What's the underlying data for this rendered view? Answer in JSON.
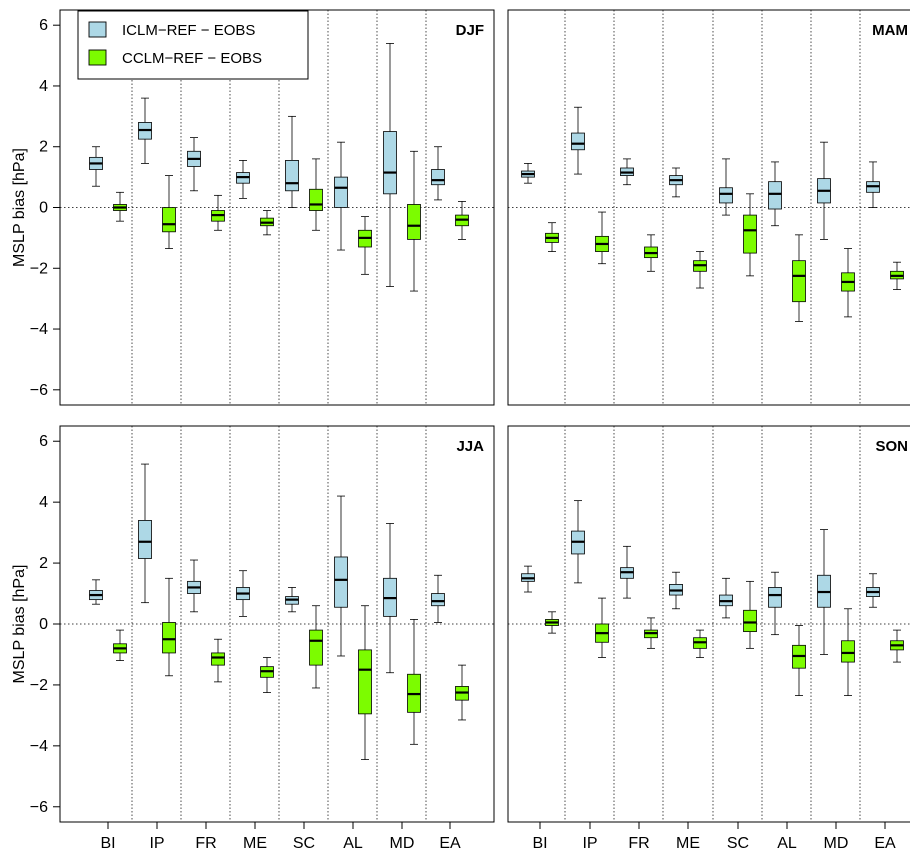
{
  "chart_data": {
    "type": "boxplot",
    "ylabel": "MSLP bias [hPa]",
    "ylim": [
      -6.5,
      6.5
    ],
    "yticks": [
      -6,
      -4,
      -2,
      0,
      2,
      4,
      6
    ],
    "categories": [
      "BI",
      "IP",
      "FR",
      "ME",
      "SC",
      "AL",
      "MD",
      "EA"
    ],
    "legend": {
      "position": "top-left",
      "items": [
        {
          "label": "ICLM−REF − EOBS",
          "color": "#add8e6"
        },
        {
          "label": "CCLM−REF − EOBS",
          "color": "#7cfc00"
        }
      ]
    },
    "reference_line": 0,
    "panels": [
      {
        "title": "DJF",
        "series": [
          {
            "name": "ICLM−REF − EOBS",
            "color": "#add8e6",
            "boxes": [
              {
                "min": 0.7,
                "q1": 1.25,
                "median": 1.45,
                "q3": 1.65,
                "max": 2.0
              },
              {
                "min": 1.45,
                "q1": 2.25,
                "median": 2.55,
                "q3": 2.8,
                "max": 3.6
              },
              {
                "min": 0.55,
                "q1": 1.35,
                "median": 1.6,
                "q3": 1.85,
                "max": 2.3
              },
              {
                "min": 0.3,
                "q1": 0.8,
                "median": 1.0,
                "q3": 1.15,
                "max": 1.55
              },
              {
                "min": 0.0,
                "q1": 0.55,
                "median": 0.8,
                "q3": 1.55,
                "max": 3.0
              },
              {
                "min": -1.4,
                "q1": 0.0,
                "median": 0.65,
                "q3": 1.0,
                "max": 2.15
              },
              {
                "min": -2.6,
                "q1": 0.45,
                "median": 1.15,
                "q3": 2.5,
                "max": 5.4
              },
              {
                "min": 0.25,
                "q1": 0.75,
                "median": 0.9,
                "q3": 1.25,
                "max": 2.0
              }
            ]
          },
          {
            "name": "CCLM−REF − EOBS",
            "color": "#7cfc00",
            "boxes": [
              {
                "min": -0.45,
                "q1": -0.1,
                "median": 0.0,
                "q3": 0.1,
                "max": 0.5
              },
              {
                "min": -1.35,
                "q1": -0.8,
                "median": -0.55,
                "q3": 0.0,
                "max": 1.05
              },
              {
                "min": -0.75,
                "q1": -0.45,
                "median": -0.25,
                "q3": -0.1,
                "max": 0.4
              },
              {
                "min": -0.9,
                "q1": -0.6,
                "median": -0.5,
                "q3": -0.35,
                "max": -0.1
              },
              {
                "min": -0.75,
                "q1": -0.1,
                "median": 0.1,
                "q3": 0.6,
                "max": 1.6
              },
              {
                "min": -2.2,
                "q1": -1.3,
                "median": -1.0,
                "q3": -0.75,
                "max": -0.3
              },
              {
                "min": -2.75,
                "q1": -1.05,
                "median": -0.6,
                "q3": 0.1,
                "max": 1.85
              },
              {
                "min": -1.05,
                "q1": -0.6,
                "median": -0.4,
                "q3": -0.25,
                "max": 0.2
              }
            ]
          }
        ]
      },
      {
        "title": "MAM",
        "series": [
          {
            "name": "ICLM−REF − EOBS",
            "color": "#add8e6",
            "boxes": [
              {
                "min": 0.8,
                "q1": 1.0,
                "median": 1.1,
                "q3": 1.2,
                "max": 1.45
              },
              {
                "min": 1.1,
                "q1": 1.9,
                "median": 2.1,
                "q3": 2.45,
                "max": 3.3
              },
              {
                "min": 0.75,
                "q1": 1.05,
                "median": 1.15,
                "q3": 1.3,
                "max": 1.6
              },
              {
                "min": 0.35,
                "q1": 0.75,
                "median": 0.9,
                "q3": 1.05,
                "max": 1.3
              },
              {
                "min": -0.25,
                "q1": 0.15,
                "median": 0.45,
                "q3": 0.65,
                "max": 1.6
              },
              {
                "min": -0.6,
                "q1": -0.05,
                "median": 0.45,
                "q3": 0.85,
                "max": 1.5
              },
              {
                "min": -1.05,
                "q1": 0.15,
                "median": 0.55,
                "q3": 0.95,
                "max": 2.15
              },
              {
                "min": 0.0,
                "q1": 0.5,
                "median": 0.7,
                "q3": 0.85,
                "max": 1.5
              }
            ]
          },
          {
            "name": "CCLM−REF − EOBS",
            "color": "#7cfc00",
            "boxes": [
              {
                "min": -1.45,
                "q1": -1.15,
                "median": -1.0,
                "q3": -0.85,
                "max": -0.5
              },
              {
                "min": -1.85,
                "q1": -1.45,
                "median": -1.2,
                "q3": -0.95,
                "max": -0.15
              },
              {
                "min": -2.1,
                "q1": -1.65,
                "median": -1.5,
                "q3": -1.3,
                "max": -0.9
              },
              {
                "min": -2.65,
                "q1": -2.1,
                "median": -1.9,
                "q3": -1.75,
                "max": -1.45
              },
              {
                "min": -2.25,
                "q1": -1.5,
                "median": -0.75,
                "q3": -0.25,
                "max": 0.45
              },
              {
                "min": -3.75,
                "q1": -3.1,
                "median": -2.25,
                "q3": -1.75,
                "max": -0.9
              },
              {
                "min": -3.6,
                "q1": -2.75,
                "median": -2.45,
                "q3": -2.15,
                "max": -1.35
              },
              {
                "min": -2.7,
                "q1": -2.35,
                "median": -2.25,
                "q3": -2.1,
                "max": -1.8
              }
            ]
          }
        ]
      },
      {
        "title": "JJA",
        "series": [
          {
            "name": "ICLM−REF − EOBS",
            "color": "#add8e6",
            "boxes": [
              {
                "min": 0.65,
                "q1": 0.8,
                "median": 0.95,
                "q3": 1.1,
                "max": 1.45
              },
              {
                "min": 0.7,
                "q1": 2.15,
                "median": 2.7,
                "q3": 3.4,
                "max": 5.25
              },
              {
                "min": 0.4,
                "q1": 1.0,
                "median": 1.2,
                "q3": 1.4,
                "max": 2.1
              },
              {
                "min": 0.25,
                "q1": 0.8,
                "median": 1.0,
                "q3": 1.2,
                "max": 1.75
              },
              {
                "min": 0.4,
                "q1": 0.65,
                "median": 0.8,
                "q3": 0.9,
                "max": 1.2
              },
              {
                "min": -1.05,
                "q1": 0.55,
                "median": 1.45,
                "q3": 2.2,
                "max": 4.2
              },
              {
                "min": -1.6,
                "q1": 0.25,
                "median": 0.85,
                "q3": 1.5,
                "max": 3.3
              },
              {
                "min": 0.05,
                "q1": 0.6,
                "median": 0.75,
                "q3": 1.0,
                "max": 1.6
              }
            ]
          },
          {
            "name": "CCLM−REF − EOBS",
            "color": "#7cfc00",
            "boxes": [
              {
                "min": -1.2,
                "q1": -0.95,
                "median": -0.8,
                "q3": -0.65,
                "max": -0.2
              },
              {
                "min": -1.7,
                "q1": -0.95,
                "median": -0.5,
                "q3": 0.05,
                "max": 1.5
              },
              {
                "min": -1.9,
                "q1": -1.35,
                "median": -1.1,
                "q3": -0.95,
                "max": -0.5
              },
              {
                "min": -2.25,
                "q1": -1.75,
                "median": -1.55,
                "q3": -1.4,
                "max": -1.1
              },
              {
                "min": -2.1,
                "q1": -1.35,
                "median": -0.55,
                "q3": -0.2,
                "max": 0.6
              },
              {
                "min": -4.45,
                "q1": -2.95,
                "median": -1.5,
                "q3": -0.85,
                "max": 0.6
              },
              {
                "min": -3.95,
                "q1": -2.9,
                "median": -2.3,
                "q3": -1.65,
                "max": 0.15
              },
              {
                "min": -3.15,
                "q1": -2.5,
                "median": -2.25,
                "q3": -2.05,
                "max": -1.35
              }
            ]
          }
        ]
      },
      {
        "title": "SON",
        "series": [
          {
            "name": "ICLM−REF − EOBS",
            "color": "#add8e6",
            "boxes": [
              {
                "min": 1.05,
                "q1": 1.4,
                "median": 1.5,
                "q3": 1.65,
                "max": 1.9
              },
              {
                "min": 1.35,
                "q1": 2.3,
                "median": 2.7,
                "q3": 3.05,
                "max": 4.05
              },
              {
                "min": 0.85,
                "q1": 1.5,
                "median": 1.7,
                "q3": 1.85,
                "max": 2.55
              },
              {
                "min": 0.5,
                "q1": 0.95,
                "median": 1.1,
                "q3": 1.3,
                "max": 1.7
              },
              {
                "min": 0.2,
                "q1": 0.6,
                "median": 0.75,
                "q3": 0.95,
                "max": 1.5
              },
              {
                "min": -0.35,
                "q1": 0.55,
                "median": 0.95,
                "q3": 1.2,
                "max": 1.7
              },
              {
                "min": -1.0,
                "q1": 0.55,
                "median": 1.05,
                "q3": 1.6,
                "max": 3.1
              },
              {
                "min": 0.55,
                "q1": 0.9,
                "median": 1.05,
                "q3": 1.2,
                "max": 1.65
              }
            ]
          },
          {
            "name": "CCLM−REF − EOBS",
            "color": "#7cfc00",
            "boxes": [
              {
                "min": -0.3,
                "q1": -0.05,
                "median": 0.05,
                "q3": 0.15,
                "max": 0.4
              },
              {
                "min": -1.1,
                "q1": -0.6,
                "median": -0.3,
                "q3": 0.0,
                "max": 0.85
              },
              {
                "min": -0.8,
                "q1": -0.45,
                "median": -0.3,
                "q3": -0.2,
                "max": 0.2
              },
              {
                "min": -1.1,
                "q1": -0.8,
                "median": -0.6,
                "q3": -0.45,
                "max": -0.2
              },
              {
                "min": -0.8,
                "q1": -0.25,
                "median": 0.05,
                "q3": 0.45,
                "max": 1.4
              },
              {
                "min": -2.35,
                "q1": -1.45,
                "median": -1.05,
                "q3": -0.7,
                "max": -0.05
              },
              {
                "min": -2.35,
                "q1": -1.25,
                "median": -0.95,
                "q3": -0.55,
                "max": 0.5
              },
              {
                "min": -1.25,
                "q1": -0.85,
                "median": -0.7,
                "q3": -0.55,
                "max": -0.2
              }
            ]
          }
        ]
      }
    ]
  }
}
